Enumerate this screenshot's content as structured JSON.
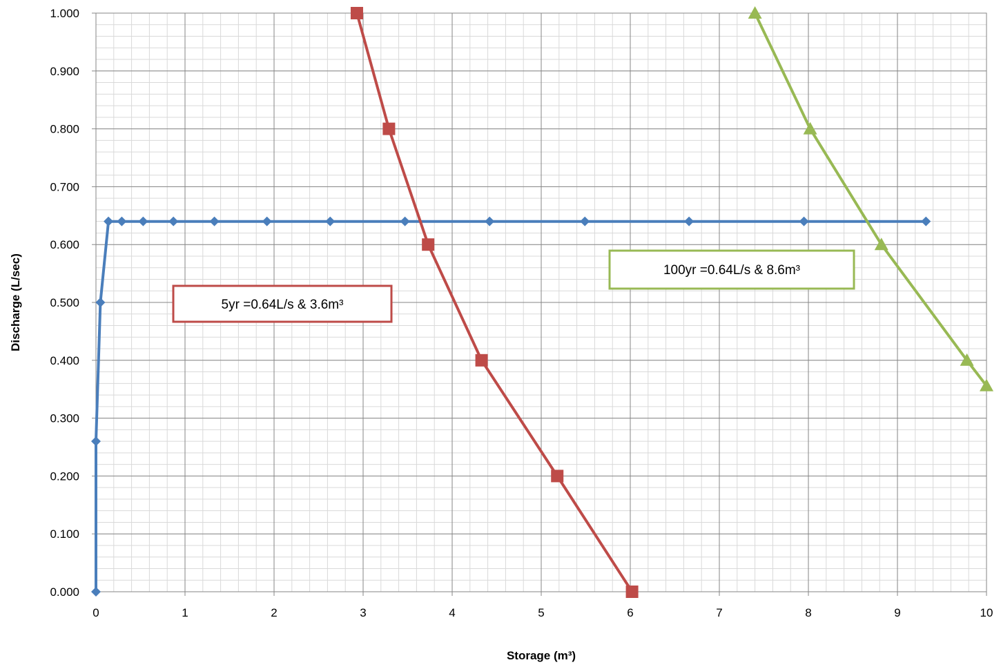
{
  "chart_data": {
    "type": "line",
    "xlabel": "Storage (m³)",
    "ylabel": "Discharge (L/sec)",
    "xlim": [
      0,
      10
    ],
    "ylim": [
      0,
      1.0
    ],
    "x_ticks": [
      0,
      1,
      2,
      3,
      4,
      5,
      6,
      7,
      8,
      9,
      10
    ],
    "x_tick_labels": [
      "0",
      "1",
      "2",
      "3",
      "4",
      "5",
      "6",
      "7",
      "8",
      "9",
      "10"
    ],
    "y_ticks": [
      0,
      0.1,
      0.2,
      0.3,
      0.4,
      0.5,
      0.6,
      0.7,
      0.8,
      0.9,
      1.0
    ],
    "y_tick_labels": [
      "0.000",
      "0.100",
      "0.200",
      "0.300",
      "0.400",
      "0.500",
      "0.600",
      "0.700",
      "0.800",
      "0.900",
      "1.000"
    ],
    "grid": {
      "major": true,
      "minor": true,
      "minor_x_step": 0.2,
      "minor_y_step": 0.02
    },
    "series": [
      {
        "color": "#4a7ebb",
        "marker": "diamond",
        "points": [
          [
            0.0,
            0.0
          ],
          [
            0.0,
            0.26
          ],
          [
            0.05,
            0.5
          ],
          [
            0.14,
            0.64
          ],
          [
            0.29,
            0.64
          ],
          [
            0.53,
            0.64
          ],
          [
            0.87,
            0.64
          ],
          [
            1.33,
            0.64
          ],
          [
            1.92,
            0.64
          ],
          [
            2.63,
            0.64
          ],
          [
            3.47,
            0.64
          ],
          [
            4.42,
            0.64
          ],
          [
            5.49,
            0.64
          ],
          [
            6.66,
            0.64
          ],
          [
            7.95,
            0.64
          ],
          [
            9.32,
            0.64
          ]
        ]
      },
      {
        "color": "#be4b48",
        "marker": "square",
        "points": [
          [
            2.93,
            1.0
          ],
          [
            3.29,
            0.8
          ],
          [
            3.73,
            0.6
          ],
          [
            4.33,
            0.4
          ],
          [
            5.18,
            0.2
          ],
          [
            6.02,
            0.0
          ]
        ]
      },
      {
        "color": "#98b954",
        "marker": "triangle",
        "points": [
          [
            7.4,
            1.0
          ],
          [
            8.02,
            0.8
          ],
          [
            8.82,
            0.6
          ],
          [
            9.78,
            0.4
          ],
          [
            10.0,
            0.356
          ]
        ]
      }
    ],
    "annotations": [
      {
        "text": "5yr =0.64L/s & 3.6m³",
        "color": "#be4b48"
      },
      {
        "text": "100yr =0.64L/s & 8.6m³",
        "color": "#98b954"
      }
    ]
  }
}
